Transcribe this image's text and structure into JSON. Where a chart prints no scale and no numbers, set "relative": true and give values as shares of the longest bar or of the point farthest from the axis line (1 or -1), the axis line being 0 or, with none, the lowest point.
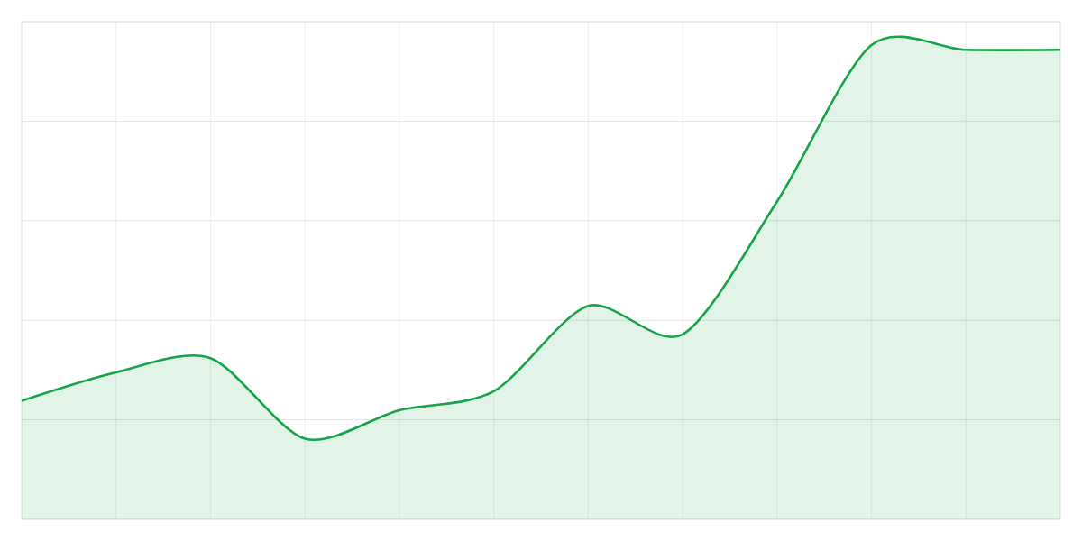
{
  "chart_data": {
    "type": "area",
    "relative": true,
    "grid": true,
    "categories": [
      null,
      null,
      null,
      null,
      null,
      null,
      null,
      null,
      null,
      null,
      null,
      null
    ],
    "series": [
      {
        "color": "#16a34a",
        "values": [
          0.25,
          0.31,
          0.34,
          0.17,
          0.23,
          0.27,
          0.45,
          0.39,
          0.67,
          1,
          0.99,
          0.99
        ]
      }
    ]
  }
}
